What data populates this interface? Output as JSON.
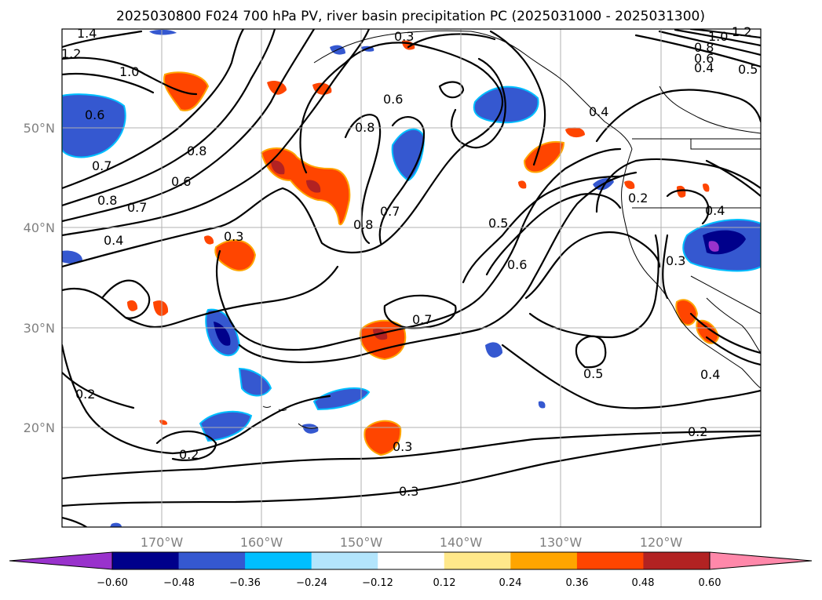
{
  "title": "2025030800 F024 700 hPa PV, river basin precipitation PC (2025031000 - 2025031300)",
  "lat_labels": [
    "50°N",
    "40°N",
    "30°N",
    "20°N"
  ],
  "lon_labels": [
    "170°W",
    "160°W",
    "150°W",
    "140°W",
    "130°W",
    "120°W"
  ],
  "map_extent": {
    "lon": [
      -180,
      -110
    ],
    "lat": [
      10,
      60
    ]
  },
  "colorbar": {
    "ticks": [
      "−0.60",
      "−0.48",
      "−0.36",
      "−0.24",
      "−0.12",
      "0.12",
      "0.24",
      "0.36",
      "0.48",
      "0.60"
    ],
    "colors": [
      "#9932cc",
      "#00008b",
      "#3558d0",
      "#00bfff",
      "#b3e5fc",
      "#ffffff",
      "#ffe88a",
      "#ffa500",
      "#ff4500",
      "#b22222",
      "#ff88aa"
    ],
    "extend": "both"
  },
  "contour_labels": [
    "1.4",
    "1.2",
    "1.0",
    "0.6",
    "0.7",
    "0.8",
    "0.7",
    "0.4",
    "0.8",
    "0.6",
    "0.3",
    "0.6",
    "0.8",
    "0.8",
    "0.7",
    "0.3",
    "0.4",
    "1.0",
    "0.8",
    "0.6",
    "0.4",
    "0.5",
    "1.2",
    "0.2",
    "0.4",
    "0.5",
    "0.6",
    "0.3",
    "0.7",
    "0.5",
    "0.4",
    "0.2",
    "0.2",
    "0.2",
    "0.3",
    "0.3"
  ],
  "layers": [
    "700 hPa PV contours",
    "precipitation PC (shaded)",
    "coastlines",
    "national/state borders"
  ]
}
